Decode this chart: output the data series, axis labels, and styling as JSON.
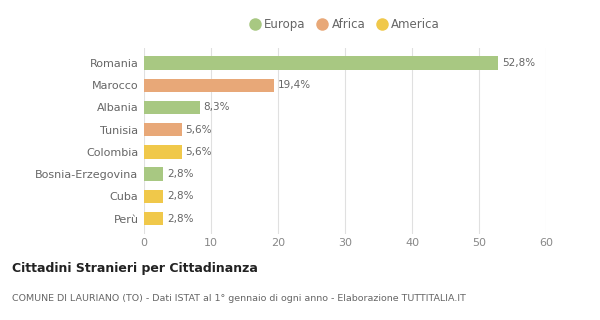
{
  "categories": [
    "Romania",
    "Marocco",
    "Albania",
    "Tunisia",
    "Colombia",
    "Bosnia-Erzegovina",
    "Cuba",
    "Perù"
  ],
  "values": [
    52.8,
    19.4,
    8.3,
    5.6,
    5.6,
    2.8,
    2.8,
    2.8
  ],
  "labels": [
    "52,8%",
    "19,4%",
    "8,3%",
    "5,6%",
    "5,6%",
    "2,8%",
    "2,8%",
    "2,8%"
  ],
  "colors": [
    "#a8c882",
    "#e8a878",
    "#a8c882",
    "#e8a878",
    "#f0c84a",
    "#a8c882",
    "#f0c84a",
    "#f0c84a"
  ],
  "legend": [
    {
      "label": "Europa",
      "color": "#a8c882"
    },
    {
      "label": "Africa",
      "color": "#e8a878"
    },
    {
      "label": "America",
      "color": "#f0c84a"
    }
  ],
  "xlim": [
    0,
    60
  ],
  "xticks": [
    0,
    10,
    20,
    30,
    40,
    50,
    60
  ],
  "title": "Cittadini Stranieri per Cittadinanza",
  "subtitle": "COMUNE DI LAURIANO (TO) - Dati ISTAT al 1° gennaio di ogni anno - Elaborazione TUTTITALIA.IT",
  "background_color": "#ffffff",
  "grid_color": "#e0e0e0",
  "bar_height": 0.6,
  "label_fontsize": 7.5,
  "ytick_fontsize": 8.0,
  "xtick_fontsize": 8.0
}
